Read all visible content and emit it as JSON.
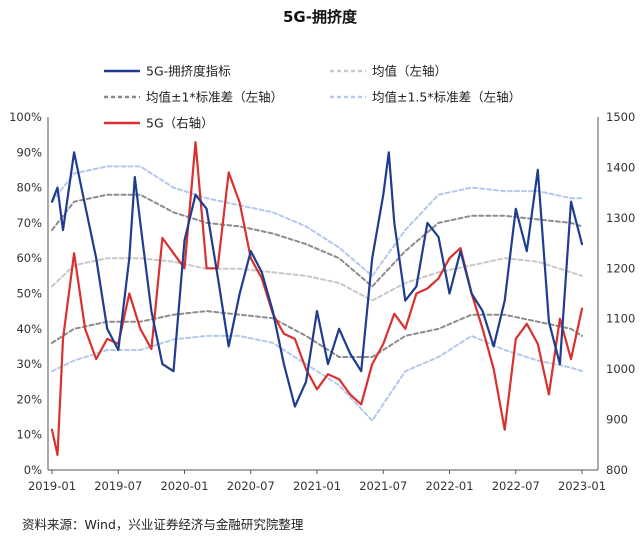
{
  "chart_data": {
    "type": "line",
    "title": "5G-拥挤度",
    "source": "资料来源：Wind，兴业证券经济与金融研究院整理",
    "x_ticks": [
      "2019-01",
      "2019-07",
      "2020-01",
      "2020-07",
      "2021-01",
      "2021-07",
      "2022-01",
      "2022-07",
      "2023-01"
    ],
    "x_range": [
      "2019-01",
      "2023-01"
    ],
    "left_axis": {
      "ticks": [
        "0%",
        "10%",
        "20%",
        "30%",
        "40%",
        "50%",
        "60%",
        "70%",
        "80%",
        "90%",
        "100%"
      ],
      "ylim": [
        0,
        1
      ]
    },
    "right_axis": {
      "ticks": [
        "800",
        "900",
        "1000",
        "1100",
        "1200",
        "1300",
        "1400",
        "1500"
      ],
      "ylim": [
        800,
        1500
      ]
    },
    "legend": [
      {
        "label": "5G-拥挤度指标",
        "color": "#1f3c8f",
        "style": "solid"
      },
      {
        "label": "均值（左轴）",
        "color": "#c8c8c8",
        "style": "dashed"
      },
      {
        "label": "均值±1*标准差（左轴）",
        "color": "#8c8c8c",
        "style": "dashed"
      },
      {
        "label": "均值±1.5*标准差（左轴）",
        "color": "#b4c8ec",
        "style": "dashed"
      },
      {
        "label": "5G（右轴）",
        "color": "#d8312f",
        "style": "solid"
      }
    ],
    "series": [
      {
        "name": "5G-拥挤度指标",
        "axis": "left",
        "color": "#1f3c8f",
        "x": [
          "2019-01",
          "2019-01",
          "2019-02",
          "2019-03",
          "2019-04",
          "2019-05",
          "2019-06",
          "2019-07",
          "2019-08",
          "2019-08",
          "2019-09",
          "2019-10",
          "2019-11",
          "2019-12",
          "2020-01",
          "2020-02",
          "2020-03",
          "2020-04",
          "2020-05",
          "2020-06",
          "2020-07",
          "2020-08",
          "2020-09",
          "2020-10",
          "2020-11",
          "2020-12",
          "2021-01",
          "2021-02",
          "2021-03",
          "2021-04",
          "2021-05",
          "2021-06",
          "2021-07",
          "2021-07",
          "2021-08",
          "2021-09",
          "2021-10",
          "2021-11",
          "2021-12",
          "2022-01",
          "2022-02",
          "2022-03",
          "2022-04",
          "2022-05",
          "2022-06",
          "2022-07",
          "2022-08",
          "2022-09",
          "2022-10",
          "2022-11",
          "2022-12",
          "2023-01"
        ],
        "y": [
          0.76,
          0.8,
          0.68,
          0.9,
          0.75,
          0.6,
          0.4,
          0.34,
          0.6,
          0.83,
          0.7,
          0.45,
          0.3,
          0.28,
          0.65,
          0.78,
          0.74,
          0.55,
          0.35,
          0.5,
          0.62,
          0.56,
          0.45,
          0.3,
          0.18,
          0.25,
          0.45,
          0.3,
          0.4,
          0.33,
          0.28,
          0.6,
          0.78,
          0.9,
          0.7,
          0.48,
          0.52,
          0.7,
          0.66,
          0.5,
          0.62,
          0.5,
          0.45,
          0.35,
          0.48,
          0.74,
          0.62,
          0.85,
          0.42,
          0.3,
          0.76,
          0.64
        ]
      },
      {
        "name": "均值（左轴）",
        "axis": "left",
        "color": "#c8c8c8",
        "x": [
          "2019-01",
          "2019-03",
          "2019-06",
          "2019-09",
          "2019-12",
          "2020-03",
          "2020-06",
          "2020-09",
          "2020-12",
          "2021-03",
          "2021-06",
          "2021-09",
          "2021-12",
          "2022-03",
          "2022-06",
          "2022-09",
          "2022-12",
          "2023-01"
        ],
        "y": [
          0.52,
          0.58,
          0.6,
          0.6,
          0.59,
          0.57,
          0.57,
          0.56,
          0.55,
          0.53,
          0.48,
          0.53,
          0.56,
          0.58,
          0.6,
          0.59,
          0.56,
          0.55
        ]
      },
      {
        "name": "均值+1*标准差（左轴）",
        "axis": "left",
        "color": "#8c8c8c",
        "x": [
          "2019-01",
          "2019-03",
          "2019-06",
          "2019-09",
          "2019-12",
          "2020-03",
          "2020-06",
          "2020-09",
          "2020-12",
          "2021-03",
          "2021-06",
          "2021-09",
          "2021-12",
          "2022-03",
          "2022-06",
          "2022-09",
          "2022-12",
          "2023-01"
        ],
        "y": [
          0.68,
          0.76,
          0.78,
          0.78,
          0.73,
          0.7,
          0.69,
          0.67,
          0.64,
          0.6,
          0.52,
          0.62,
          0.7,
          0.72,
          0.72,
          0.71,
          0.7,
          0.69
        ]
      },
      {
        "name": "均值-1*标准差（左轴）",
        "axis": "left",
        "color": "#8c8c8c",
        "x": [
          "2019-01",
          "2019-03",
          "2019-06",
          "2019-09",
          "2019-12",
          "2020-03",
          "2020-06",
          "2020-09",
          "2020-12",
          "2021-03",
          "2021-06",
          "2021-09",
          "2021-12",
          "2022-03",
          "2022-06",
          "2022-09",
          "2022-12",
          "2023-01"
        ],
        "y": [
          0.36,
          0.4,
          0.42,
          0.42,
          0.44,
          0.45,
          0.44,
          0.43,
          0.38,
          0.32,
          0.32,
          0.38,
          0.4,
          0.44,
          0.44,
          0.42,
          0.4,
          0.38
        ]
      },
      {
        "name": "均值+1.5*标准差（左轴）",
        "axis": "left",
        "color": "#b4c8ec",
        "x": [
          "2019-01",
          "2019-03",
          "2019-06",
          "2019-09",
          "2019-12",
          "2020-03",
          "2020-06",
          "2020-09",
          "2020-12",
          "2021-03",
          "2021-06",
          "2021-09",
          "2021-12",
          "2022-03",
          "2022-06",
          "2022-09",
          "2022-12",
          "2023-01"
        ],
        "y": [
          0.76,
          0.84,
          0.86,
          0.86,
          0.8,
          0.77,
          0.75,
          0.73,
          0.69,
          0.63,
          0.55,
          0.68,
          0.78,
          0.8,
          0.79,
          0.79,
          0.77,
          0.77
        ]
      },
      {
        "name": "均值-1.5*标准差（左轴）",
        "axis": "left",
        "color": "#b4c8ec",
        "x": [
          "2019-01",
          "2019-03",
          "2019-06",
          "2019-09",
          "2019-12",
          "2020-03",
          "2020-06",
          "2020-09",
          "2020-12",
          "2021-03",
          "2021-06",
          "2021-09",
          "2021-12",
          "2022-03",
          "2022-06",
          "2022-09",
          "2022-12",
          "2023-01"
        ],
        "y": [
          0.28,
          0.31,
          0.34,
          0.34,
          0.37,
          0.38,
          0.38,
          0.36,
          0.3,
          0.24,
          0.14,
          0.28,
          0.32,
          0.38,
          0.34,
          0.31,
          0.29,
          0.28
        ]
      },
      {
        "name": "5G（右轴）",
        "axis": "right",
        "color": "#d8312f",
        "x": [
          "2019-01",
          "2019-01",
          "2019-02",
          "2019-03",
          "2019-04",
          "2019-05",
          "2019-06",
          "2019-07",
          "2019-08",
          "2019-09",
          "2019-10",
          "2019-11",
          "2019-12",
          "2020-01",
          "2020-02",
          "2020-03",
          "2020-04",
          "2020-05",
          "2020-06",
          "2020-07",
          "2020-08",
          "2020-09",
          "2020-10",
          "2020-11",
          "2020-12",
          "2021-01",
          "2021-02",
          "2021-03",
          "2021-04",
          "2021-05",
          "2021-06",
          "2021-07",
          "2021-08",
          "2021-09",
          "2021-10",
          "2021-11",
          "2021-12",
          "2022-01",
          "2022-02",
          "2022-03",
          "2022-04",
          "2022-05",
          "2022-06",
          "2022-07",
          "2022-08",
          "2022-09",
          "2022-10",
          "2022-11",
          "2022-12",
          "2023-01"
        ],
        "y": [
          880,
          830,
          1060,
          1230,
          1080,
          1020,
          1060,
          1050,
          1150,
          1080,
          1040,
          1260,
          1230,
          1200,
          1450,
          1200,
          1200,
          1390,
          1330,
          1220,
          1180,
          1110,
          1070,
          1060,
          1000,
          960,
          990,
          980,
          950,
          930,
          1010,
          1050,
          1110,
          1080,
          1150,
          1160,
          1180,
          1220,
          1240,
          1150,
          1080,
          1000,
          880,
          1060,
          1090,
          1050,
          950,
          1100,
          1020,
          1120
        ]
      }
    ]
  }
}
